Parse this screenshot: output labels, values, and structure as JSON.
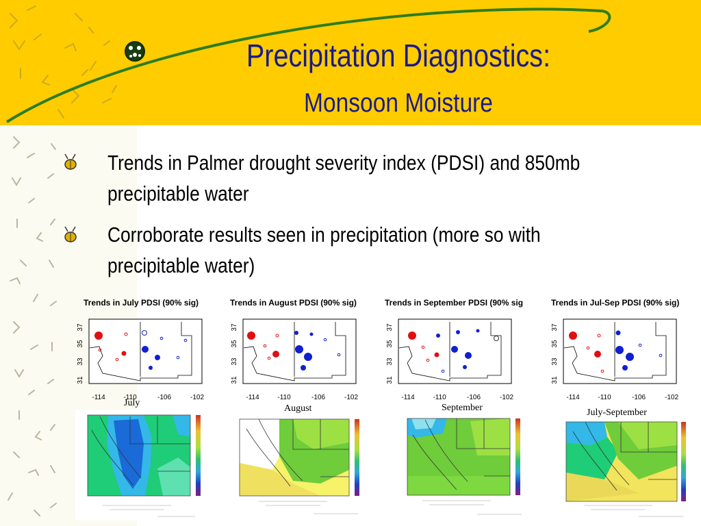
{
  "title": "Precipitation Diagnostics:",
  "subtitle": "Monsoon Moisture",
  "bullets": [
    {
      "line1": "Trends in Palmer drought severity index (PDSI) and 850mb",
      "line2": "precipitable water"
    },
    {
      "line1": "Corroborate results seen in precipitation (more so with",
      "line2": "precipitable water)"
    }
  ],
  "pdsi_panels": [
    {
      "title": "Trends in July PDSI (90% sig)",
      "caption": "July"
    },
    {
      "title": "Trends in August PDSI (90% sig)",
      "caption": "August"
    },
    {
      "title": "Trends in September PDSI (90% sig",
      "caption": "September"
    },
    {
      "title": "Trends in Jul-Sep PDSI (90% sig)",
      "caption": "July-September"
    }
  ],
  "axes": {
    "x_ticks": [
      "-114",
      "-110",
      "-106",
      "-102"
    ],
    "y_ticks": [
      "37",
      "35",
      "33",
      "31"
    ]
  },
  "colors": {
    "banner": "#ffcc00",
    "title": "#1a1a8c",
    "positive_trend": "#e01010",
    "negative_trend": "#1020d0"
  }
}
